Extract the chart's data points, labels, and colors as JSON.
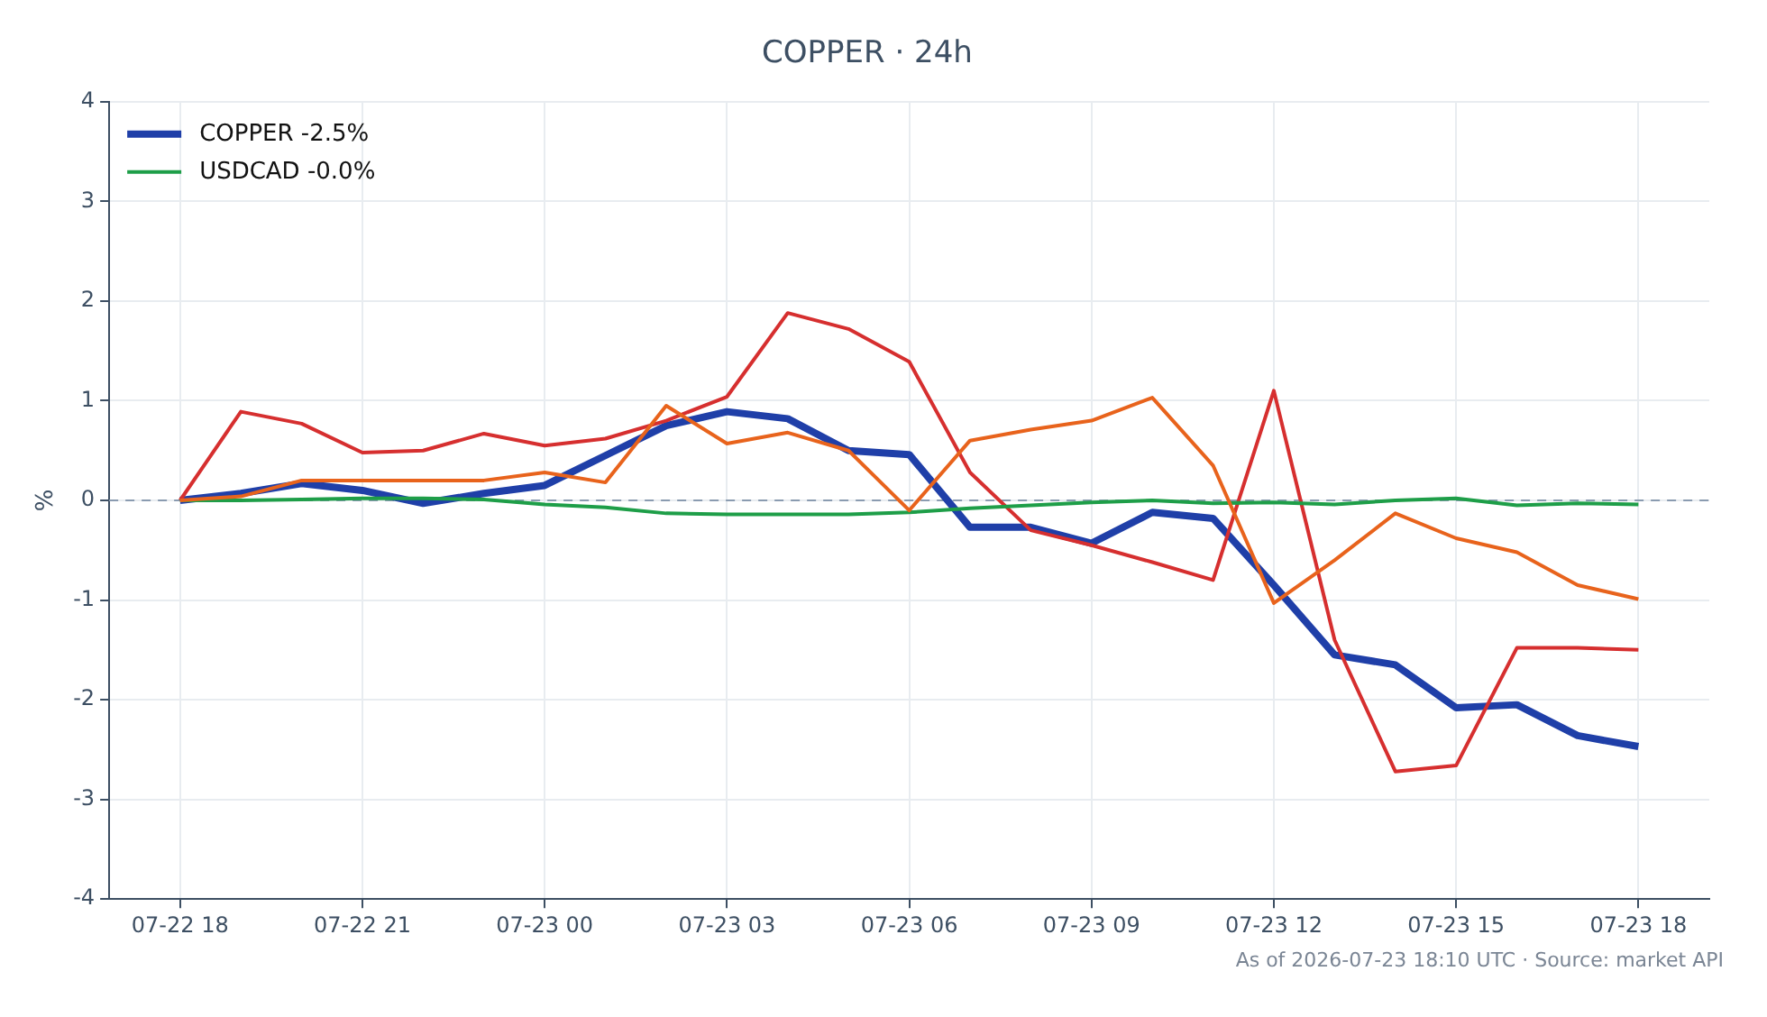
{
  "chart_data": {
    "type": "line",
    "title": "COPPER · 24h",
    "ylabel": "%",
    "x": [
      "2026-07-22T18:00",
      "2026-07-22T19:00",
      "2026-07-22T20:00",
      "2026-07-22T21:00",
      "2026-07-22T22:00",
      "2026-07-22T23:00",
      "2026-07-23T00:00",
      "2026-07-23T01:00",
      "2026-07-23T02:00",
      "2026-07-23T03:00",
      "2026-07-23T04:00",
      "2026-07-23T05:00",
      "2026-07-23T06:00",
      "2026-07-23T07:00",
      "2026-07-23T08:00",
      "2026-07-23T09:00",
      "2026-07-23T10:00",
      "2026-07-23T11:00",
      "2026-07-23T12:00",
      "2026-07-23T13:00",
      "2026-07-23T14:00",
      "2026-07-23T15:00",
      "2026-07-23T16:00",
      "2026-07-23T17:00",
      "2026-07-23T18:00"
    ],
    "series": [
      {
        "name": "COPPER -2.5%",
        "color": "#1f3fa8",
        "values": [
          0,
          0.07,
          0.17,
          0.1,
          -0.03,
          0.07,
          0.15,
          0.45,
          0.75,
          0.89,
          0.82,
          0.5,
          0.46,
          -0.27,
          -0.27,
          -0.43,
          -0.12,
          -0.18,
          -0.85,
          -1.55,
          -1.65,
          -2.08,
          -2.05,
          -2.36,
          -2.47
        ]
      },
      {
        "color": "#d62f2f",
        "values": [
          0,
          0.89,
          0.77,
          0.48,
          0.5,
          0.67,
          0.55,
          0.62,
          0.8,
          1.04,
          1.88,
          1.72,
          1.39,
          0.28,
          -0.3,
          -0.45,
          -0.62,
          -0.8,
          1.1,
          -1.4,
          -2.72,
          -2.66,
          -1.48,
          -1.48,
          -1.5
        ]
      },
      {
        "name": "USDCAD -0.0%",
        "color": "#1e9e48",
        "values": [
          0,
          0,
          0.01,
          0.02,
          0.02,
          0.01,
          -0.04,
          -0.07,
          -0.13,
          -0.14,
          -0.14,
          -0.14,
          -0.12,
          -0.08,
          -0.05,
          -0.02,
          0,
          -0.03,
          -0.02,
          -0.04,
          0,
          0.02,
          -0.05,
          -0.03,
          -0.04
        ]
      },
      {
        "color": "#e8631c",
        "values": [
          0,
          0.04,
          0.2,
          0.2,
          0.2,
          0.2,
          0.28,
          0.18,
          0.95,
          0.57,
          0.68,
          0.5,
          -0.1,
          0.6,
          0.71,
          0.8,
          1.03,
          0.35,
          -1.03,
          -0.6,
          -0.13,
          -0.38,
          -0.52,
          -0.85,
          -0.99
        ]
      }
    ],
    "xlim": [
      "2026-07-22T16:50",
      "2026-07-23T19:10"
    ],
    "xticks": [
      {
        "value": "2026-07-22T18:00",
        "label": "07-22 18"
      },
      {
        "value": "2026-07-22T21:00",
        "label": "07-22 21"
      },
      {
        "value": "2026-07-23T00:00",
        "label": "07-23 00"
      },
      {
        "value": "2026-07-23T03:00",
        "label": "07-23 03"
      },
      {
        "value": "2026-07-23T06:00",
        "label": "07-23 06"
      },
      {
        "value": "2026-07-23T09:00",
        "label": "07-23 09"
      },
      {
        "value": "2026-07-23T12:00",
        "label": "07-23 12"
      },
      {
        "value": "2026-07-23T15:00",
        "label": "07-23 15"
      },
      {
        "value": "2026-07-23T18:00",
        "label": "07-23 18"
      }
    ],
    "ylim": [
      -4,
      4
    ],
    "yticks": [
      -4,
      -3,
      -2,
      -1,
      0,
      1,
      2,
      3,
      4
    ],
    "ref_lines": [
      {
        "axis": "y",
        "value": 0,
        "color": "#8a9bb0",
        "line_style": "dashed"
      }
    ],
    "grid": true,
    "legend": "top left",
    "marker": "none",
    "line_style": "solid",
    "annotations": [
      "As of 2026-07-23 18:10 UTC · Source: market API"
    ]
  }
}
